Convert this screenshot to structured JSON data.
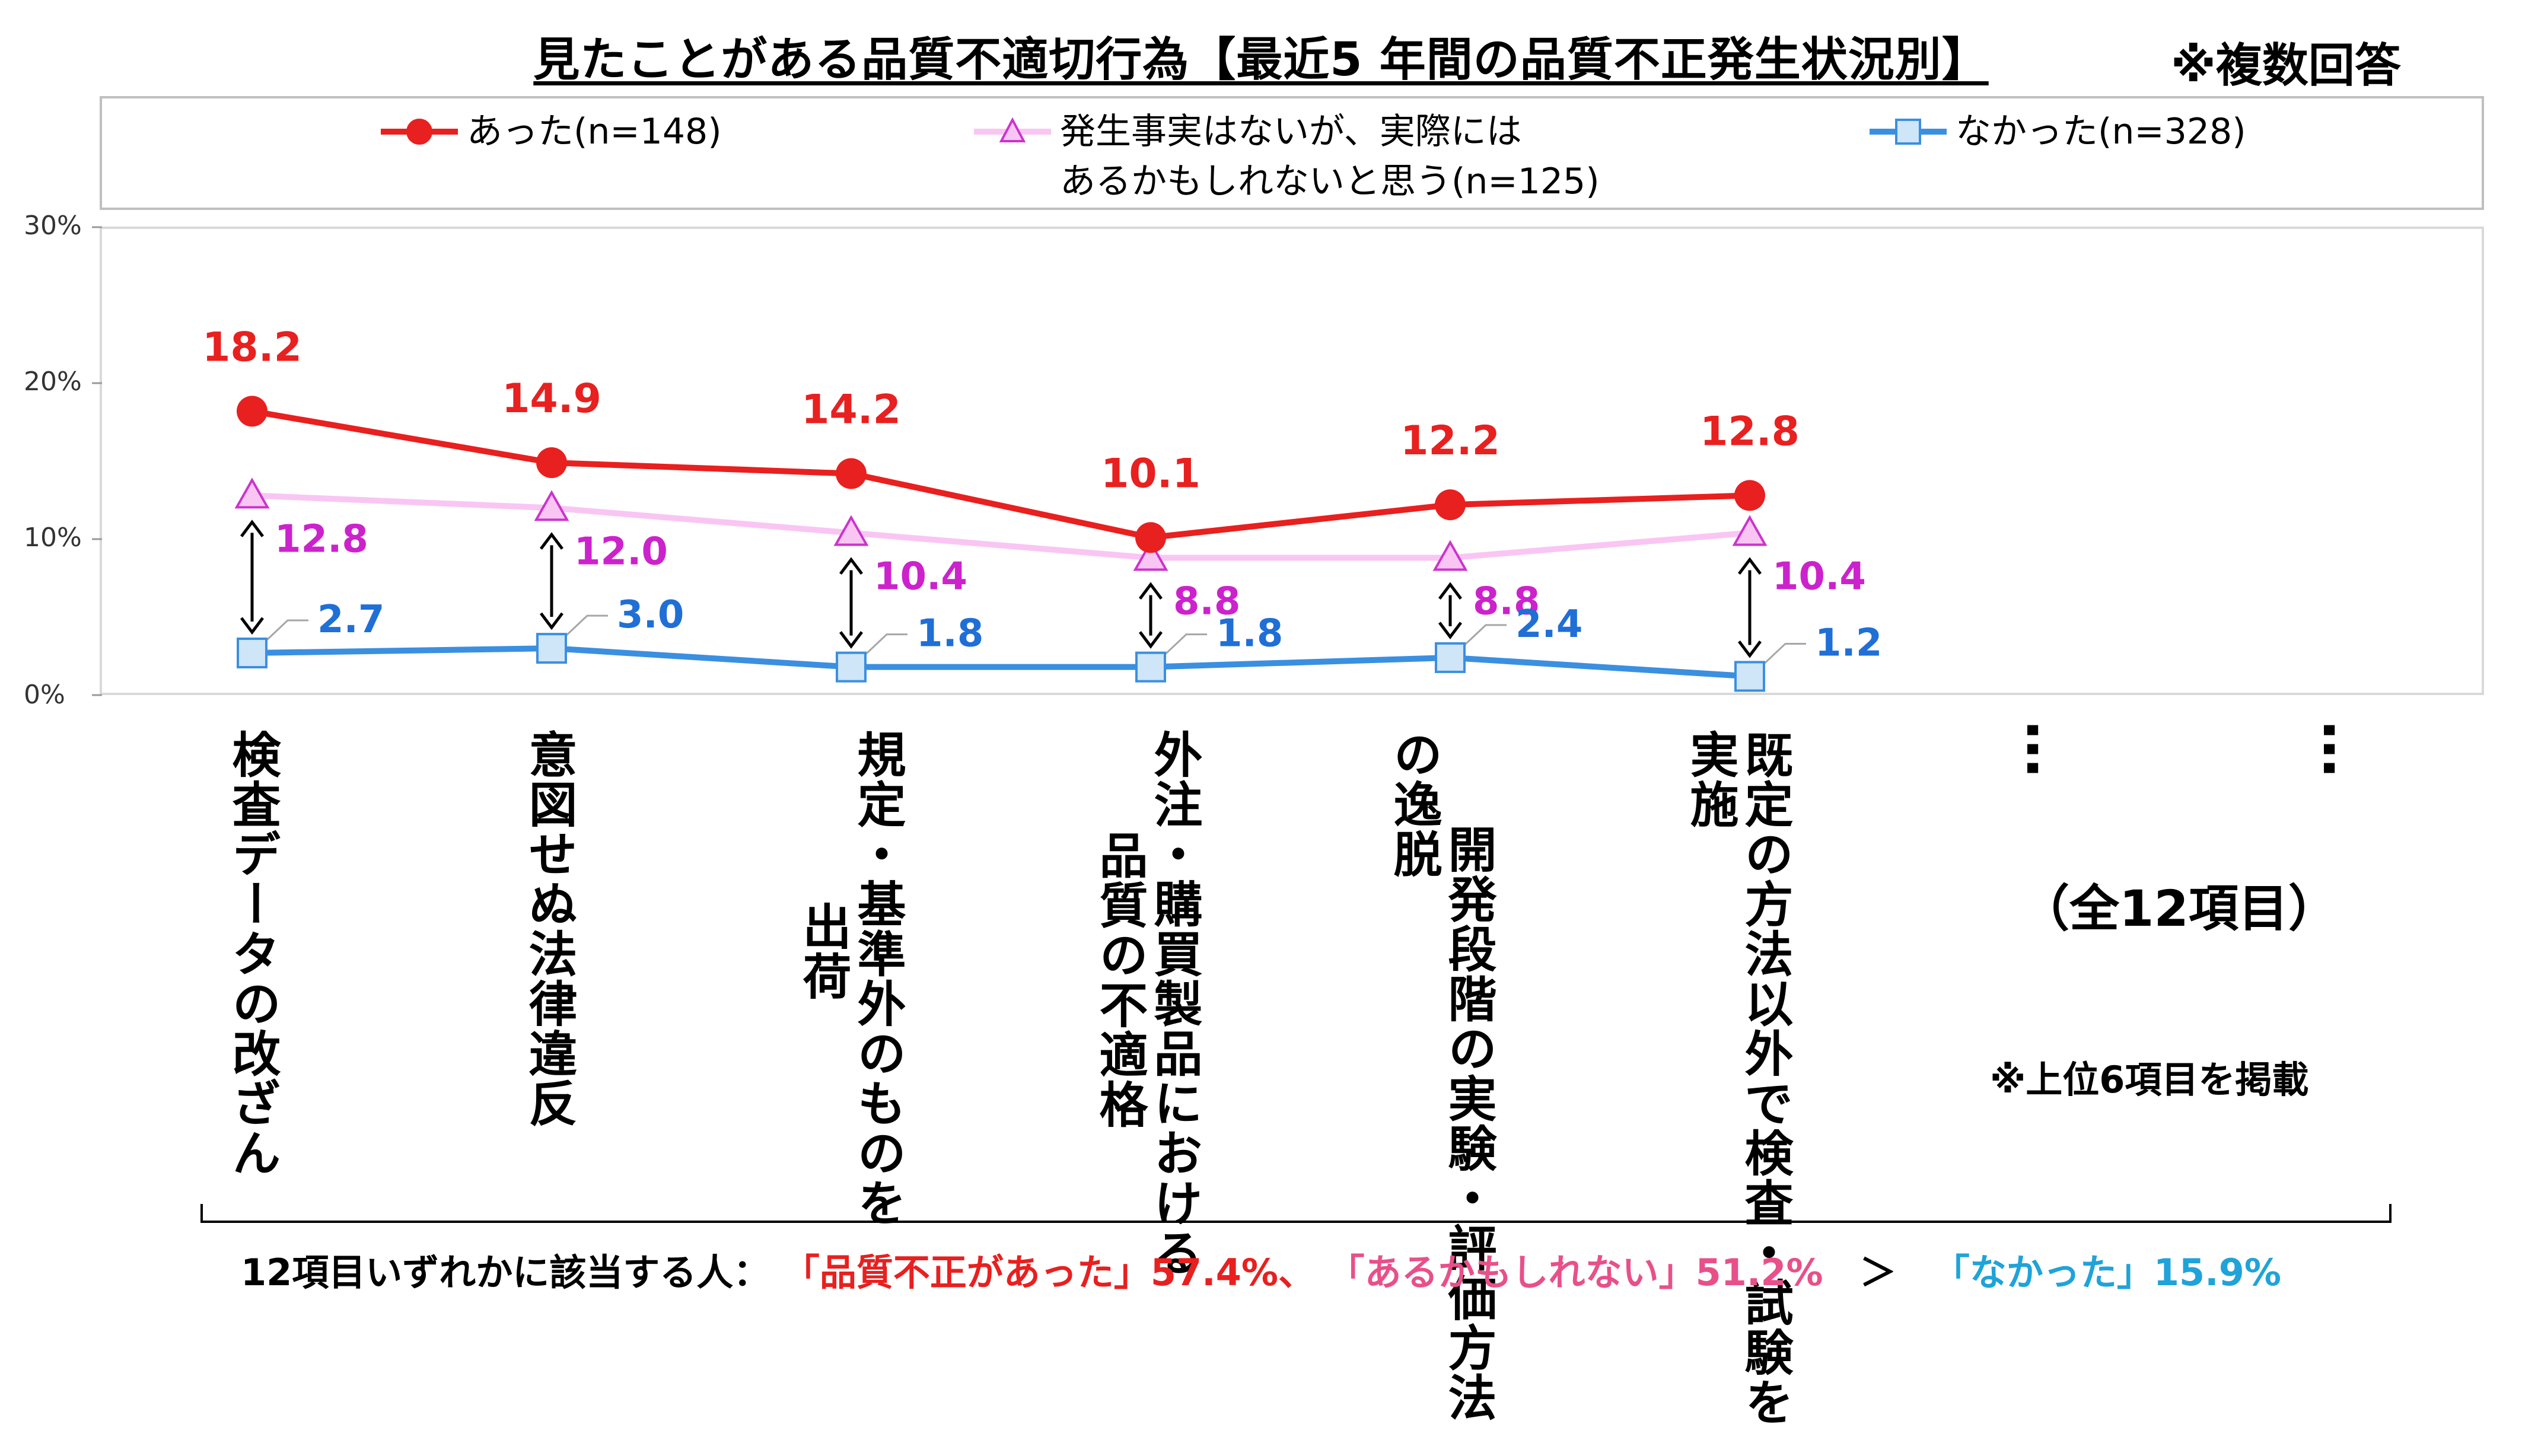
{
  "title": "見たことがある品質不適切行為【最近5 年間の品質不正発生状況別】",
  "note_multi": "※複数回答",
  "colors": {
    "series1": "#e8201f",
    "series2_line": "#f9c6f4",
    "series2_marker": "#cc33cc",
    "series2_label": "#cc22cc",
    "series3_line": "#3b8fe0",
    "series3_marker_fill": "#cfe5f8",
    "series3_label": "#1f6fd6",
    "summary_pink": "#e8508a",
    "summary_blue": "#1fa3d9"
  },
  "legend": [
    {
      "text": "あった(n=148)"
    },
    {
      "text_line1": "発生事実はないが、実際には",
      "text_line2": "あるかもしれないと思う(n=125)"
    },
    {
      "text": "なかった(n=328)"
    }
  ],
  "categories_vertical": [
    [
      "検査データの改ざん"
    ],
    [
      "意図せぬ法律違反"
    ],
    [
      "規定・基準外のものを",
      "出荷"
    ],
    [
      "外注・購買製品における",
      "品質の不適格"
    ],
    [
      "開発段階の",
      "実験・評価方法の逸脱"
    ],
    [
      "既定の方法以外で",
      "検査・試験を実施"
    ]
  ],
  "dots": "…",
  "total_items": "（全12項目）",
  "top6_note": "※上位6項目を掲載",
  "summary": {
    "prefix": "12項目いずれかに該当する人：",
    "part1": "「品質不正があった」57.4%、",
    "part2": "「あるかもしれない」51.2%",
    "gt": "＞",
    "part3": "「なかった」15.9%"
  },
  "chart_data": {
    "type": "line",
    "y_tick_labels": [
      "0%",
      "10%",
      "20%",
      "30%"
    ],
    "ylim": [
      0,
      30
    ],
    "categories": [
      "検査データの改ざん",
      "意図せぬ法律違反",
      "規定・基準外のものを出荷",
      "外注・購買製品における品質の不適格",
      "開発段階の実験・評価方法の逸脱",
      "既定の方法以外で検査・試験を実施"
    ],
    "series": [
      {
        "name": "あった(n=148)",
        "values": [
          18.2,
          14.9,
          14.2,
          10.1,
          12.2,
          12.8
        ],
        "labels": [
          "18.2",
          "14.9",
          "14.2",
          "10.1",
          "12.2",
          "12.8"
        ]
      },
      {
        "name": "発生事実はないが、実際にはあるかもしれないと思う(n=125)",
        "values": [
          12.8,
          12.0,
          10.4,
          8.8,
          8.8,
          10.4
        ],
        "labels": [
          "12.8",
          "12.0",
          "10.4",
          "8.8",
          "8.8",
          "10.4"
        ]
      },
      {
        "name": "なかった(n=328)",
        "values": [
          2.7,
          3.0,
          1.8,
          1.8,
          2.4,
          1.2
        ],
        "labels": [
          "2.7",
          "3.0",
          "1.8",
          "1.8",
          "2.4",
          "1.2"
        ]
      }
    ],
    "legend_position": "top"
  }
}
